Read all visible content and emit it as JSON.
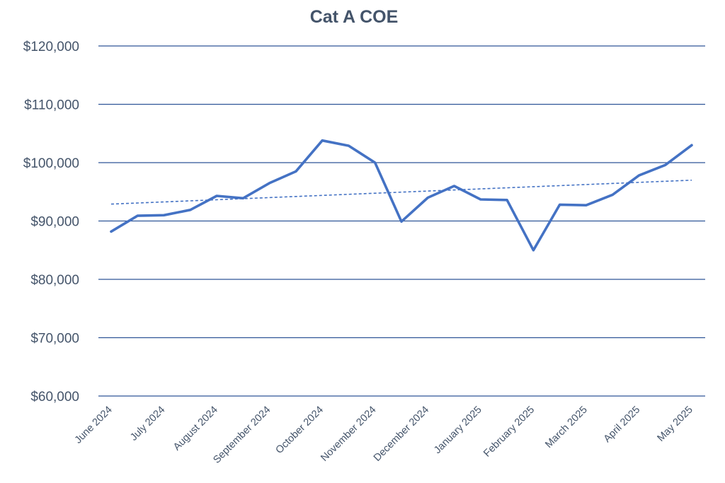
{
  "chart_data": {
    "type": "line",
    "title": "Cat A COE",
    "xlabel": "",
    "ylabel": "",
    "ylim": [
      60000,
      120000
    ],
    "y_tick_values": [
      60000,
      70000,
      80000,
      90000,
      100000,
      110000,
      120000
    ],
    "y_tick_labels": [
      "$60,000",
      "$70,000",
      "$80,000",
      "$90,000",
      "$100,000",
      "$110,000",
      "$120,000"
    ],
    "grid": true,
    "legend": "none",
    "x_tick_labels": [
      "June 2024",
      "July 2024",
      "August 2024",
      "September 2024",
      "October 2024",
      "November 2024",
      "December 2024",
      "January 2025",
      "February 2025",
      "March 2025",
      "April 2025",
      "May 2025"
    ],
    "series": [
      {
        "name": "Cat A COE",
        "style": "solid",
        "color": "#4472c4",
        "values": [
          88200,
          90900,
          91000,
          91900,
          94300,
          93900,
          96500,
          98500,
          103800,
          102900,
          100000,
          89900,
          94000,
          96000,
          93700,
          93600,
          85000,
          92800,
          92700,
          94500,
          97800,
          99600,
          103000
        ]
      },
      {
        "name": "Trendline",
        "style": "dashed",
        "color": "#4472c4",
        "values": [
          92900,
          97000
        ]
      }
    ]
  }
}
